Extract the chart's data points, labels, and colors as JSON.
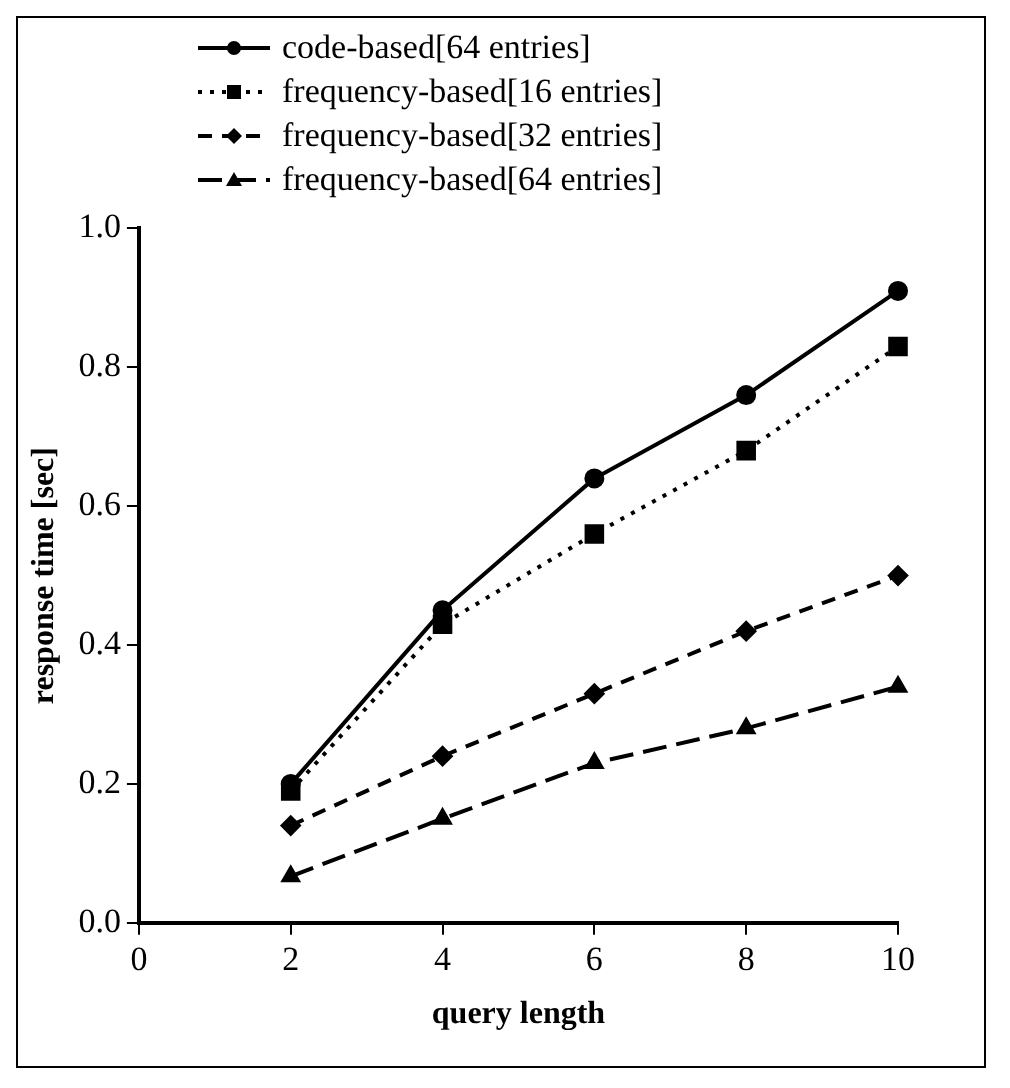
{
  "chart_data": {
    "type": "line",
    "xlabel": "query length",
    "ylabel": "response time [sec]",
    "x": [
      2,
      4,
      6,
      8,
      10
    ],
    "series": [
      {
        "name": "code-based[64 entries]",
        "color": "#000000",
        "values": [
          0.2,
          0.45,
          0.64,
          0.76,
          0.91
        ],
        "marker": "circle",
        "line_style": "solid"
      },
      {
        "name": "frequency-based[16 entries]",
        "color": "#000000",
        "values": [
          0.19,
          0.43,
          0.56,
          0.68,
          0.83
        ],
        "marker": "square",
        "line_style": "dotted"
      },
      {
        "name": "frequency-based[32 entries]",
        "color": "#000000",
        "values": [
          0.14,
          0.24,
          0.33,
          0.42,
          0.5
        ],
        "marker": "diamond",
        "line_style": "dashed"
      },
      {
        "name": "frequency-based[64 entries]",
        "color": "#000000",
        "values": [
          0.067,
          0.15,
          0.23,
          0.28,
          0.34
        ],
        "marker": "triangle",
        "line_style": "dashed"
      }
    ],
    "xlim": [
      0,
      10
    ],
    "xticks": [
      0,
      2,
      4,
      6,
      8,
      10
    ],
    "ylim": [
      0,
      1
    ],
    "yticks": [
      {
        "value": 0,
        "label": "0.0"
      },
      {
        "value": 0.2,
        "label": "0.2"
      },
      {
        "value": 0.4,
        "label": "0.4"
      },
      {
        "value": 0.6,
        "label": "0.6"
      },
      {
        "value": 0.8,
        "label": "0.8"
      },
      {
        "value": 1,
        "label": "1.0"
      }
    ],
    "grid": false,
    "legend": "top"
  }
}
